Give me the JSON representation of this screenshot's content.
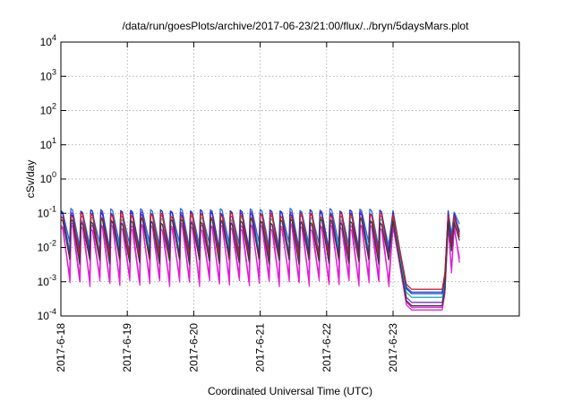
{
  "chart_data": {
    "type": "line",
    "title": "/data/run/goesPlots/archive/2017-06-23/21:00/flux/../bryn/5daysMars.plot",
    "xlabel": "Coordinated Universal Time (UTC)",
    "ylabel": "cSv/day",
    "yscale": "log",
    "ylim": [
      0.0001,
      10000
    ],
    "xlim_days": [
      0,
      6.9
    ],
    "y_ticks": [
      {
        "base": "10",
        "exp": "-4"
      },
      {
        "base": "10",
        "exp": "-3"
      },
      {
        "base": "10",
        "exp": "-2"
      },
      {
        "base": "10",
        "exp": "-1"
      },
      {
        "base": "10",
        "exp": "0"
      },
      {
        "base": "10",
        "exp": "1"
      },
      {
        "base": "10",
        "exp": "2"
      },
      {
        "base": "10",
        "exp": "3"
      },
      {
        "base": "10",
        "exp": "4"
      }
    ],
    "x_ticks": [
      "2017-6-18",
      "2017-6-19",
      "2017-6-20",
      "2017-6-21",
      "2017-6-22",
      "2017-6-23"
    ],
    "grid": true,
    "legend": "none",
    "pattern": {
      "oscillation_period_days": 0.15,
      "periodic_end_day": 5.0,
      "drop_end_day": 5.2,
      "quiet_end_day": 5.74,
      "recovery_end_day": 5.78
    },
    "series": [
      {
        "color": "#2f6fd8",
        "peak": 0.12,
        "trough": 0.012,
        "quiet": 0.0005
      },
      {
        "color": "#7a2fd0",
        "peak": 0.1,
        "trough": 0.006,
        "quiet": 0.00025
      },
      {
        "color": "#18b7b0",
        "peak": 0.07,
        "trough": 0.008,
        "quiet": 0.00035
      },
      {
        "color": "#1e2fd0",
        "peak": 0.11,
        "trough": 0.007,
        "quiet": 0.00045
      },
      {
        "color": "#d22020",
        "peak": 0.09,
        "trough": 0.005,
        "quiet": 0.0006
      },
      {
        "color": "#f020e0",
        "peak": 0.05,
        "trough": 0.0009,
        "quiet": 0.00015
      },
      {
        "color": "#e01ad6",
        "peak": 0.04,
        "trough": 0.0012,
        "quiet": 0.00018
      },
      {
        "color": "#3a3a3a",
        "peak": 0.06,
        "trough": 0.004,
        "quiet": 0.0002
      }
    ]
  }
}
